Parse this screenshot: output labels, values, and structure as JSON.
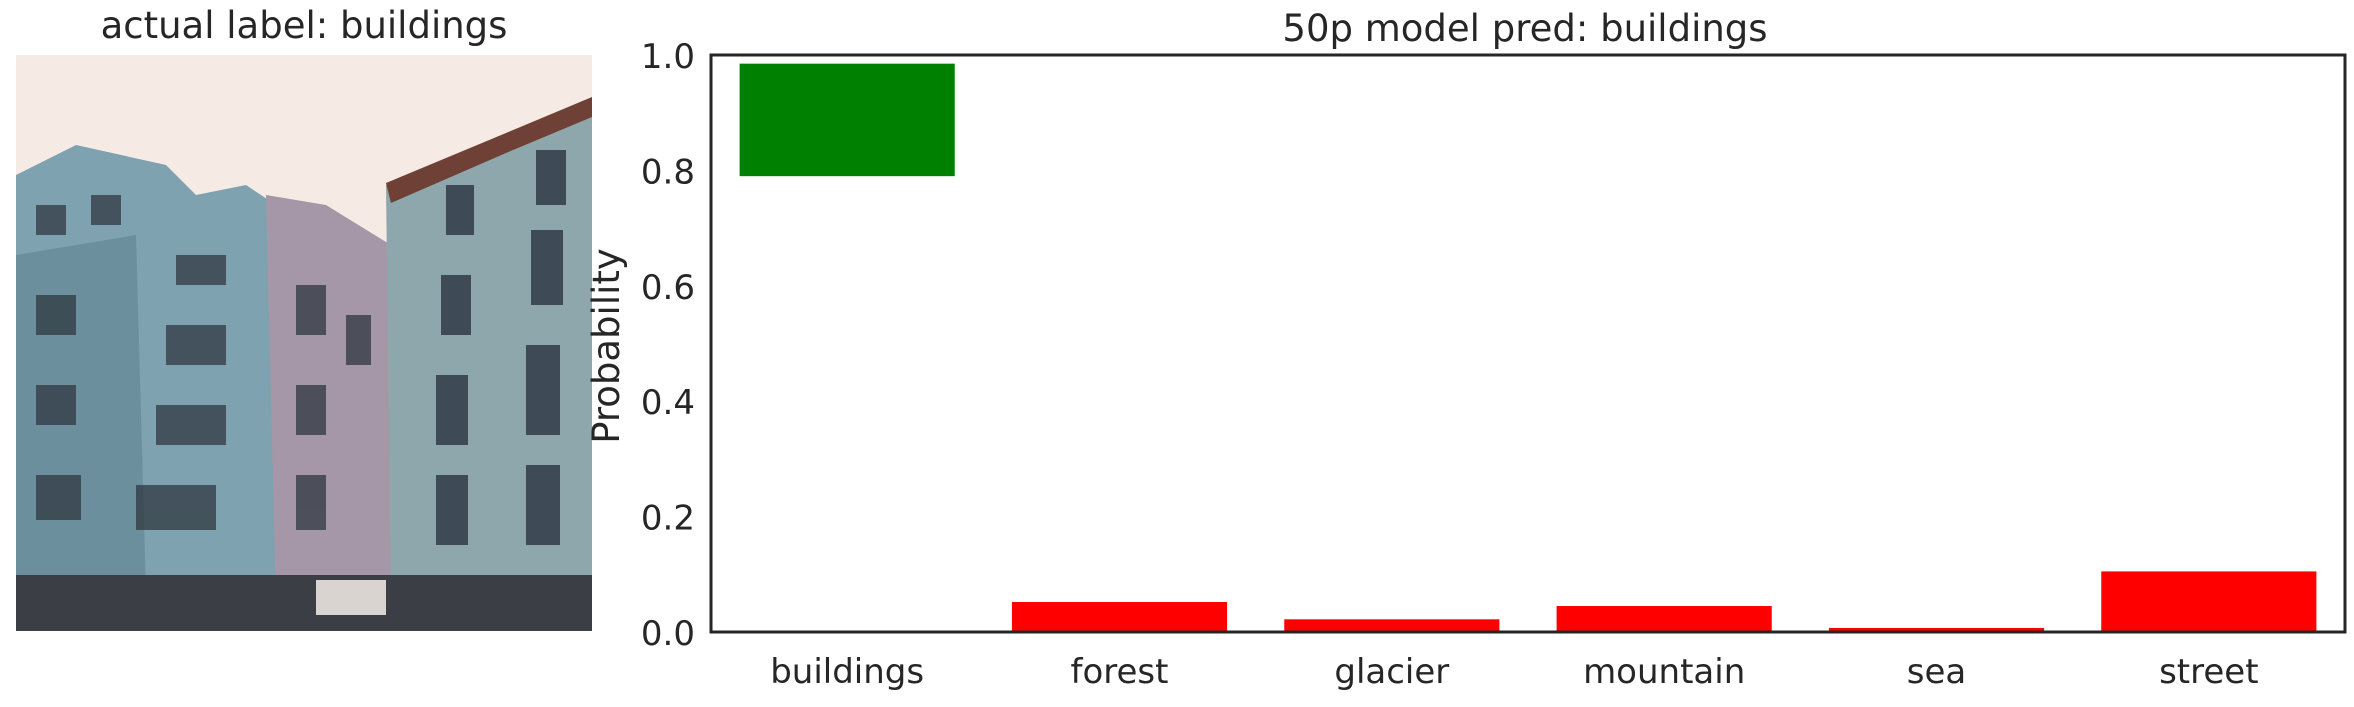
{
  "image_panel": {
    "title": "actual label: buildings",
    "photo": {
      "sky": "#f6ebe4",
      "left_building": "#7fa2b0",
      "left_building_shade": "#5d7f8e",
      "mid_building": "#a697a8",
      "right_building": "#8ea7ad",
      "right_building_dark": "#3e4a55",
      "roof": "#6f4035",
      "windows": "#2f3840",
      "street": "#3b3f45",
      "sign": "#d9d4cf"
    }
  },
  "chart_data": {
    "type": "bar",
    "title": "50p model pred: buildings",
    "xlabel": "",
    "ylabel": "Probability",
    "categories": [
      "buildings",
      "forest",
      "glacier",
      "mountain",
      "sea",
      "street"
    ],
    "values": [
      0.985,
      0.052,
      0.022,
      0.045,
      0.007,
      0.105
    ],
    "bar_bottoms": [
      0.79,
      0,
      0,
      0,
      0,
      0
    ],
    "bar_colors": [
      "#008000",
      "#ff0000",
      "#ff0000",
      "#ff0000",
      "#ff0000",
      "#ff0000"
    ],
    "ylim": [
      0,
      1.0
    ],
    "yticks": [
      "0.0",
      "0.2",
      "0.4",
      "0.6",
      "0.8",
      "1.0"
    ],
    "ytick_values": [
      0,
      0.2,
      0.4,
      0.6,
      0.8,
      1.0
    ],
    "grid": false,
    "axis_color": "#262626"
  }
}
